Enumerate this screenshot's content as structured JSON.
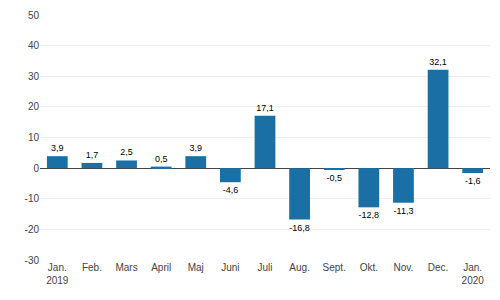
{
  "chart_data": {
    "type": "bar",
    "categories": [
      "Jan.\n2019",
      "Feb.",
      "Mars",
      "April",
      "Maj",
      "Juni",
      "Juli",
      "Aug.",
      "Sept.",
      "Okt.",
      "Nov.",
      "Dec.",
      "Jan.\n2020"
    ],
    "values": [
      3.9,
      1.7,
      2.5,
      0.5,
      3.9,
      -4.6,
      17.1,
      -16.8,
      -0.5,
      -12.8,
      -11.3,
      32.1,
      -1.6
    ],
    "value_labels": [
      "3,9",
      "1,7",
      "2,5",
      "0,5",
      "3,9",
      "-4,6",
      "17,1",
      "-16,8",
      "-0,5",
      "-12,8",
      "-11,3",
      "32,1",
      "-1,6"
    ],
    "color": "#1a6fa5",
    "ylim": [
      -30,
      50
    ],
    "yticks": [
      -30,
      -20,
      -10,
      0,
      10,
      20,
      30,
      40,
      50
    ],
    "grid": true,
    "data_labels": true
  }
}
